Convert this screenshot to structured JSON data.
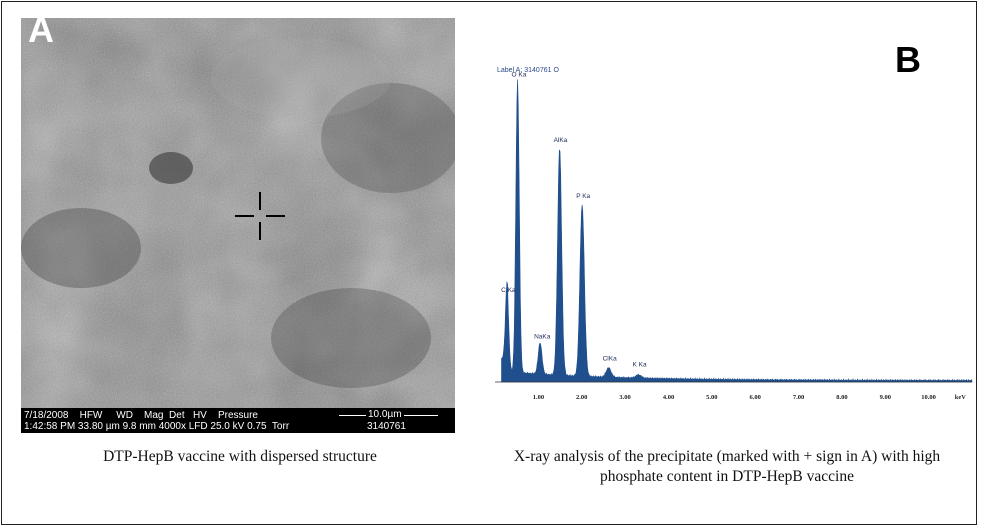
{
  "panel_a": {
    "letter": "A",
    "sem_info": {
      "row1": "7/18/2008    HFW     WD    Mag  Det   HV    Pressure",
      "row2": "1:42:58 PM 33.80 µm 9.8 mm 4000x LFD 25.0 kV 0.75  Torr",
      "scale_label": "10.0µm",
      "sample_id": "3140761"
    },
    "caption": "DTP-HepB vaccine with dispersed structure"
  },
  "panel_b": {
    "letter": "B",
    "spectrum_label": "Label A: 3140761 O",
    "caption": "X-ray analysis of the precipitate  (marked with + sign in A) with high phosphate content in DTP-HepB vaccine"
  },
  "chart_data": {
    "type": "line",
    "xlabel": "keV",
    "xlim": [
      0,
      11.0
    ],
    "ylim": [
      0,
      100
    ],
    "x_ticks": [
      "1.00",
      "2.00",
      "3.00",
      "4.00",
      "5.00",
      "6.00",
      "7.00",
      "8.00",
      "9.00",
      "10.00"
    ],
    "series_color": "#1f4f8c",
    "peaks": [
      {
        "label": "C Ka",
        "x": 0.28,
        "y": 27
      },
      {
        "label": "O Ka",
        "x": 0.52,
        "y": 96
      },
      {
        "label": "NaKa",
        "x": 1.04,
        "y": 12
      },
      {
        "label": "AlKa",
        "x": 1.49,
        "y": 75
      },
      {
        "label": "P Ka",
        "x": 2.01,
        "y": 57
      },
      {
        "label": "ClKa",
        "x": 2.62,
        "y": 5
      },
      {
        "label": "K Ka",
        "x": 3.31,
        "y": 3
      }
    ]
  }
}
